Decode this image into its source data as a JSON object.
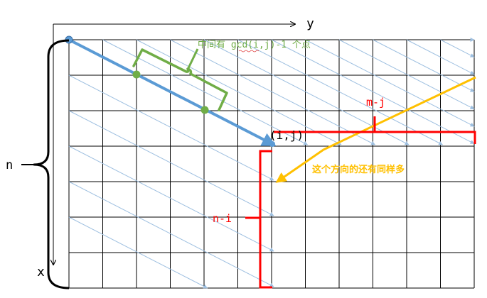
{
  "axes": {
    "y_label": "y",
    "x_label": "x"
  },
  "labels": {
    "n": "n",
    "point": "(i,j)",
    "m_minus_j": "m-j",
    "n_minus_i": "n-i",
    "gcd_note": "中间有 gcd(i,j)-1 个点",
    "direction_note": "这个方向的还有同样多"
  },
  "colors": {
    "grid": "#000000",
    "diagonals": "#9dbfe0",
    "main_vector": "#5b9bd5",
    "gcd": "#70ad47",
    "brackets": "#ff0000",
    "yellow": "#ffc000"
  }
}
